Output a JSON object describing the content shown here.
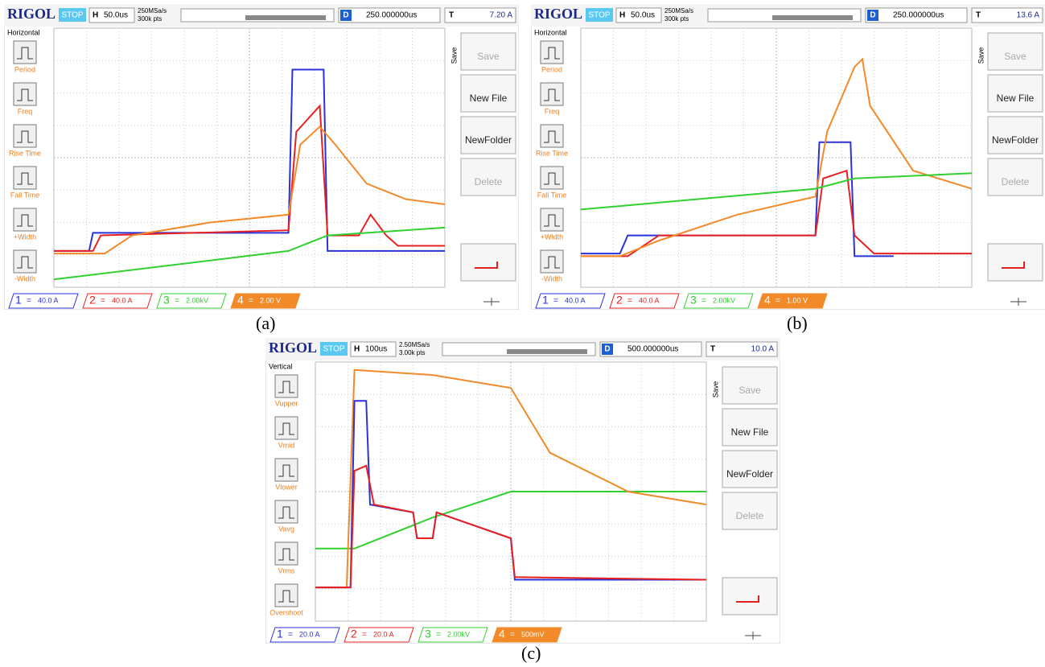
{
  "panels": [
    {
      "caption": "(a)",
      "brand": "RIGOL",
      "status": "STOP",
      "timebase_key": "H",
      "timebase": "50.0us",
      "sample_rate": "250MSa/s",
      "points": "300k pts",
      "delay_key": "D",
      "delay": "250.000000us",
      "trigger_key": "T",
      "trigger_level": "7.20 A",
      "menu_title": "Horizontal",
      "menu_items": [
        "Period",
        "Freq",
        "Rise Time",
        "Fall Time",
        "+Width",
        "-Width"
      ],
      "save_title": "Save",
      "buttons": [
        "Save",
        "New File",
        "NewFolder",
        "Delete"
      ],
      "channels": [
        {
          "number": "1",
          "coupling": "=",
          "scale": "40.0 A"
        },
        {
          "number": "2",
          "coupling": "=",
          "scale": "40.0 A"
        },
        {
          "number": "3",
          "coupling": "=",
          "scale": "2.00kV"
        },
        {
          "number": "4",
          "coupling": "=",
          "scale": "2.00 V"
        }
      ]
    },
    {
      "caption": "(b)",
      "brand": "RIGOL",
      "status": "STOP",
      "timebase_key": "H",
      "timebase": "50.0us",
      "sample_rate": "250MSa/s",
      "points": "300k pts",
      "delay_key": "D",
      "delay": "250.000000us",
      "trigger_key": "T",
      "trigger_level": "13.6 A",
      "menu_title": "Horizontal",
      "menu_items": [
        "Period",
        "Freq",
        "Rise Time",
        "Fall Time",
        "+Width",
        "-Width"
      ],
      "save_title": "Save",
      "buttons": [
        "Save",
        "New File",
        "NewFolder",
        "Delete"
      ],
      "channels": [
        {
          "number": "1",
          "coupling": "=",
          "scale": "40.0 A"
        },
        {
          "number": "2",
          "coupling": "=",
          "scale": "40.0 A"
        },
        {
          "number": "3",
          "coupling": "=",
          "scale": "2.00kV"
        },
        {
          "number": "4",
          "coupling": "=",
          "scale": "1.00 V"
        }
      ]
    },
    {
      "caption": "(c)",
      "brand": "RIGOL",
      "status": "STOP",
      "timebase_key": "H",
      "timebase": "100us",
      "sample_rate": "2.50MSa/s",
      "points": "3.00k pts",
      "delay_key": "D",
      "delay": "500.000000us",
      "trigger_key": "T",
      "trigger_level": "10.0 A",
      "menu_title": "Vertical",
      "menu_items": [
        "Vupper",
        "Vmid",
        "Vlower",
        "Vavg",
        "Vrms",
        "Overshoot"
      ],
      "save_title": "Save",
      "buttons": [
        "Save",
        "New File",
        "NewFolder",
        "Delete"
      ],
      "channels": [
        {
          "number": "1",
          "coupling": "=",
          "scale": "20.0 A"
        },
        {
          "number": "2",
          "coupling": "=",
          "scale": "20.0 A"
        },
        {
          "number": "3",
          "coupling": "=",
          "scale": "2.00kV"
        },
        {
          "number": "4",
          "coupling": "=",
          "scale": "500mV"
        }
      ]
    }
  ]
}
